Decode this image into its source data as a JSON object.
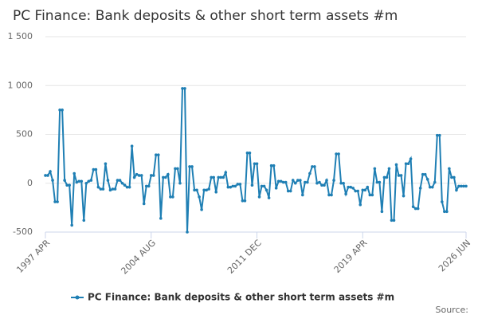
{
  "chart_data": {
    "type": "line",
    "title": "PC Finance: Bank deposits & other short term assets #m",
    "source": "Source:",
    "categories": [
      "1997 APR",
      null,
      null,
      null,
      null,
      null,
      null,
      null,
      null,
      null,
      null,
      null,
      null,
      null,
      null,
      null,
      null,
      null,
      null,
      null,
      null,
      null,
      null,
      null,
      null,
      null,
      null,
      null,
      null,
      null,
      null,
      null,
      null,
      null,
      null,
      null,
      null,
      null,
      null,
      null,
      null,
      null,
      null,
      null,
      "2004 AUG",
      null,
      null,
      null,
      null,
      null,
      null,
      null,
      null,
      null,
      null,
      null,
      null,
      null,
      null,
      null,
      null,
      null,
      null,
      null,
      null,
      null,
      null,
      null,
      null,
      null,
      null,
      null,
      null,
      null,
      null,
      null,
      null,
      null,
      null,
      null,
      null,
      null,
      null,
      null,
      null,
      null,
      null,
      null,
      "2011 DEC",
      null,
      null,
      null,
      null,
      null,
      null,
      null,
      null,
      null,
      null,
      null,
      null,
      null,
      null,
      null,
      null,
      null,
      null,
      null,
      null,
      null,
      null,
      null,
      null,
      null,
      null,
      null,
      null,
      null,
      null,
      null,
      null,
      null,
      null,
      null,
      null,
      null,
      null,
      null,
      null,
      null,
      null,
      null,
      "2019 APR",
      null,
      null,
      null,
      null,
      null,
      null,
      null,
      null,
      null,
      null,
      null,
      null,
      null,
      null,
      null,
      null,
      null,
      null,
      null,
      null,
      null,
      null,
      null,
      null,
      null,
      null,
      null,
      null,
      null,
      null,
      null,
      null,
      null,
      null,
      null,
      null,
      null,
      null,
      null,
      null,
      null,
      null,
      "2026 JUN"
    ],
    "series": [
      {
        "name": "PC Finance: Bank deposits & other short term assets #m",
        "color": "#1f7fb4",
        "values": [
          80,
          80,
          120,
          30,
          -190,
          -190,
          750,
          750,
          30,
          -20,
          -20,
          -430,
          100,
          10,
          20,
          20,
          -380,
          0,
          20,
          30,
          140,
          140,
          -40,
          -60,
          -60,
          200,
          30,
          -70,
          -60,
          -60,
          30,
          30,
          0,
          -20,
          -40,
          -40,
          380,
          60,
          90,
          80,
          80,
          -210,
          -30,
          -30,
          80,
          80,
          290,
          290,
          -360,
          60,
          60,
          90,
          -140,
          -140,
          150,
          150,
          0,
          970,
          970,
          -500,
          170,
          170,
          -70,
          -70,
          -140,
          -270,
          -70,
          -70,
          -60,
          60,
          60,
          -90,
          60,
          60,
          60,
          110,
          -40,
          -40,
          -30,
          -30,
          -10,
          -10,
          -180,
          -180,
          310,
          310,
          -20,
          200,
          200,
          -140,
          -30,
          -30,
          -70,
          -150,
          180,
          180,
          -50,
          20,
          20,
          10,
          10,
          -80,
          -80,
          30,
          0,
          30,
          30,
          -120,
          10,
          10,
          100,
          170,
          170,
          0,
          10,
          -20,
          -20,
          30,
          -120,
          -120,
          30,
          300,
          300,
          0,
          0,
          -110,
          -40,
          -40,
          -50,
          -80,
          -80,
          -220,
          -70,
          -70,
          -40,
          -120,
          -120,
          150,
          10,
          10,
          -290,
          60,
          60,
          150,
          -380,
          -380,
          190,
          80,
          80,
          -130,
          200,
          200,
          250,
          -240,
          -260,
          -260,
          -50,
          90,
          90,
          40,
          -40,
          -40,
          10,
          490,
          490,
          -190,
          -290,
          -290,
          150,
          60,
          60,
          -70,
          -30,
          -30,
          -30,
          -30
        ]
      }
    ],
    "ylim": [
      -500,
      1500
    ],
    "yticks": [
      {
        "value": 1500,
        "label": "1 500"
      },
      {
        "value": 1000,
        "label": "1 000"
      },
      500,
      0,
      -500
    ],
    "grid": true
  }
}
